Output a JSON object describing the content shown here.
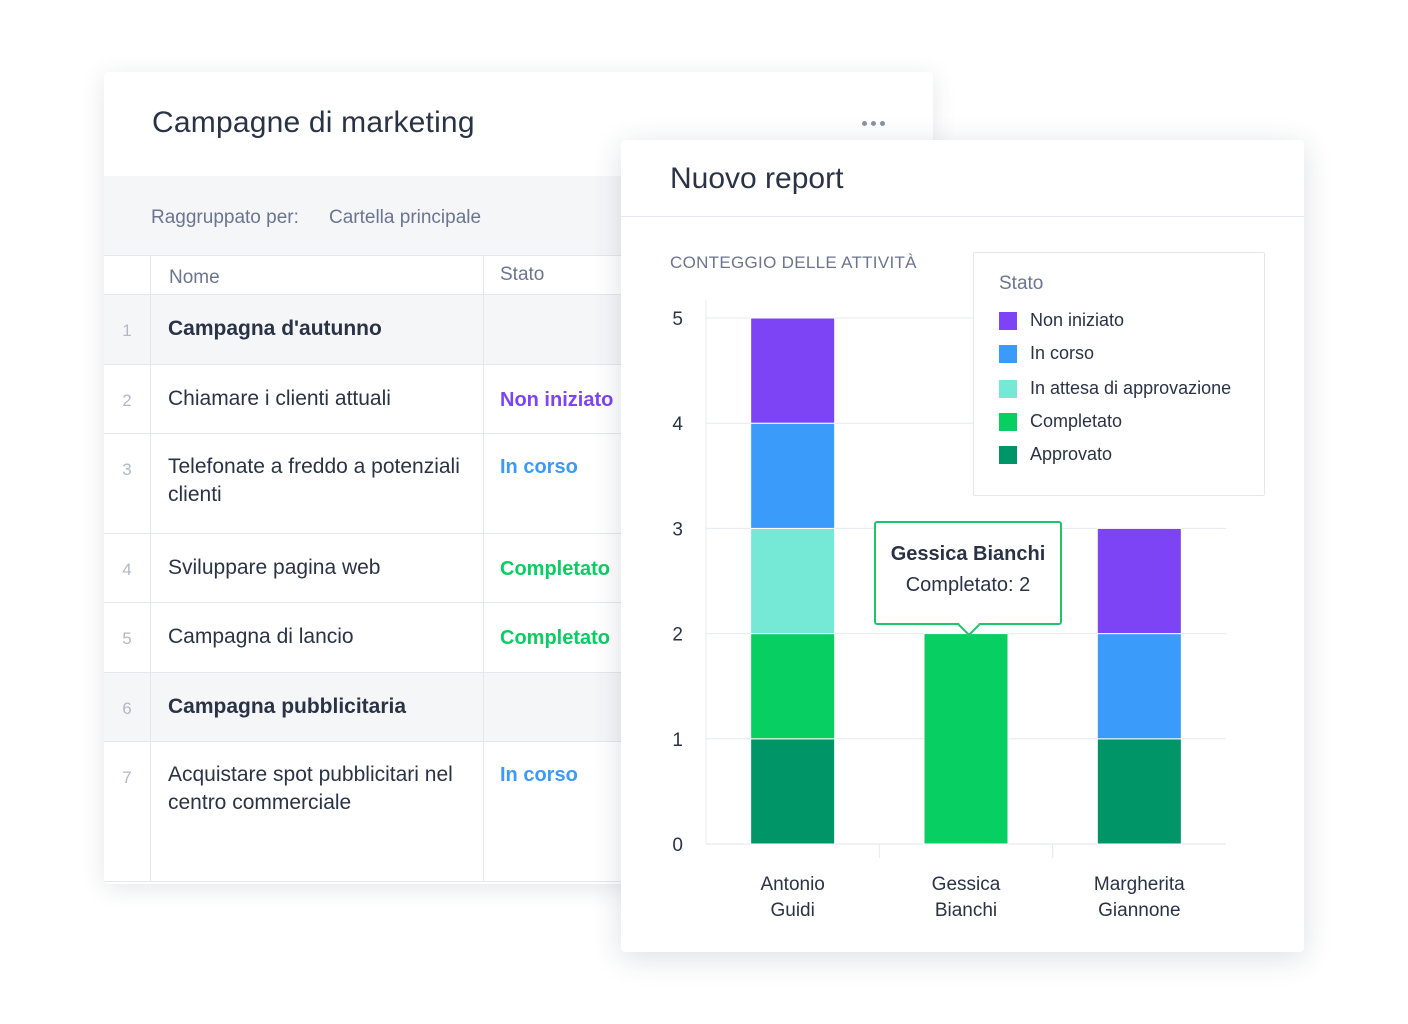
{
  "table": {
    "title": "Campagne di marketing",
    "more_icon": "more-horizontal-icon",
    "grouped_by_label": "Raggruppato per:",
    "grouped_by_value": "Cartella principale",
    "columns": [
      "Nome",
      "Stato"
    ],
    "rows": [
      {
        "num": "1",
        "name": "Campagna d'autunno",
        "status": "",
        "group": true
      },
      {
        "num": "2",
        "name": "Chiamare i clienti attuali",
        "status": "Non iniziato",
        "group": false
      },
      {
        "num": "3",
        "name": "Telefonate a freddo a potenziali clienti",
        "status": "In corso",
        "group": false
      },
      {
        "num": "4",
        "name": "Sviluppare pagina web",
        "status": "Completato",
        "group": false
      },
      {
        "num": "5",
        "name": "Campagna di lancio",
        "status": "Completato",
        "group": false
      },
      {
        "num": "6",
        "name": "Campagna pubblicitaria",
        "status": "",
        "group": true
      },
      {
        "num": "7",
        "name": "Acquistare spot pubblicitari nel centro commerciale",
        "status": "In corso",
        "group": false
      }
    ]
  },
  "status_colors": {
    "Non iniziato": "#7c44f5",
    "In corso": "#3a9bfb",
    "In attesa di approvazione": "#76e8d6",
    "Completato": "#08cf62",
    "Approvato": "#009566"
  },
  "report": {
    "title": "Nuovo report",
    "legend_title": "Stato",
    "tooltip": {
      "name": "Gessica Bianchi",
      "value": "Completato: 2"
    }
  },
  "chart_data": {
    "type": "bar",
    "stacked": true,
    "title": "CONTEGGIO DELLE ATTIVITÀ",
    "categories": [
      "Antonio Guidi",
      "Gessica Bianchi",
      "Margherita Giannone"
    ],
    "series": [
      {
        "name": "Approvato",
        "values": [
          1,
          0,
          1
        ]
      },
      {
        "name": "Completato",
        "values": [
          1,
          2,
          0
        ]
      },
      {
        "name": "In attesa di approvazione",
        "values": [
          1,
          0,
          0
        ]
      },
      {
        "name": "In corso",
        "values": [
          1,
          0,
          1
        ]
      },
      {
        "name": "Non iniziato",
        "values": [
          1,
          0,
          1
        ]
      }
    ],
    "legend_order": [
      "Non iniziato",
      "In corso",
      "In attesa di approvazione",
      "Completato",
      "Approvato"
    ],
    "yticks": [
      "0",
      "1",
      "2",
      "3",
      "4",
      "5"
    ],
    "ylim": [
      0,
      5
    ],
    "grid": true,
    "legend_position": "top-right"
  }
}
